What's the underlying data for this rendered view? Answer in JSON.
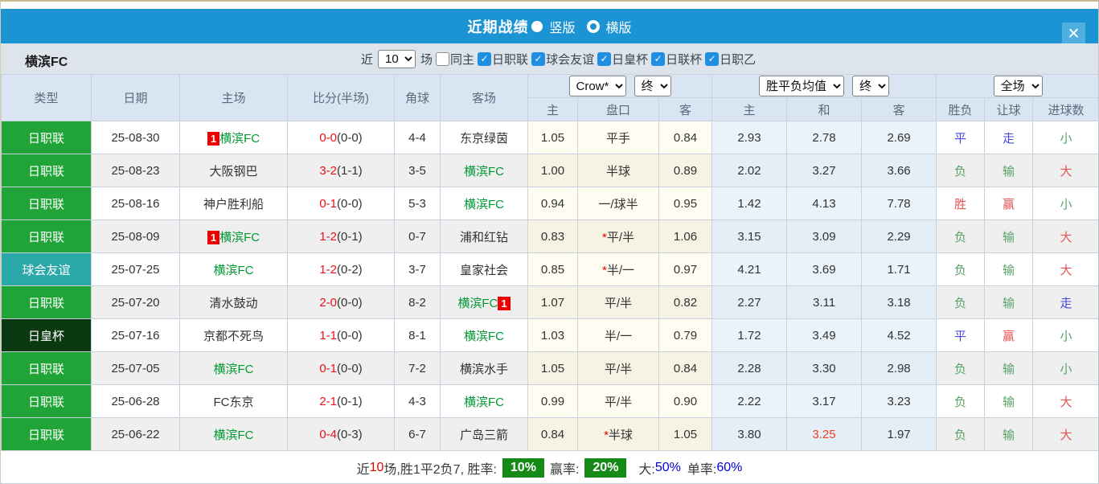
{
  "header": {
    "title": "近期战绩",
    "layout_vertical": "竖版",
    "layout_horizontal": "横版",
    "close_glyph": "✕"
  },
  "filter": {
    "team": "横滨FC",
    "near_label": "近",
    "near_value": "10",
    "games_label": "场",
    "same_home_label": "同主",
    "leagues": [
      "日职联",
      "球会友谊",
      "日皇杯",
      "日联杯",
      "日职乙"
    ],
    "check_glyph": "✓"
  },
  "table": {
    "static_headers": [
      "类型",
      "日期",
      "主场",
      "比分(半场)",
      "角球",
      "客场"
    ],
    "odds_group": {
      "select1": "Crow*",
      "select2": "终",
      "cols": [
        "主",
        "盘口",
        "客"
      ]
    },
    "avg_group": {
      "select1": "胜平负均值",
      "select2": "终",
      "cols": [
        "主",
        "和",
        "客"
      ]
    },
    "result_group": {
      "select": "全场",
      "cols": [
        "胜负",
        "让球",
        "进球数"
      ]
    },
    "rows": [
      {
        "league": "日职联",
        "league_color": "green",
        "date": "25-08-30",
        "home": {
          "name": "横滨FC",
          "green": true,
          "badge": "1",
          "badge_pos": "before"
        },
        "ft": "0-0",
        "ht": "(0-0)",
        "corners": "4-4",
        "away": {
          "name": "东京绿茵"
        },
        "odds_home": "1.05",
        "handicap": {
          "text": "平手"
        },
        "odds_away": "0.84",
        "avg": [
          "2.93",
          "2.78",
          "2.69"
        ],
        "results": [
          {
            "t": "平",
            "c": "blue"
          },
          {
            "t": "走",
            "c": "blue"
          },
          {
            "t": "小",
            "c": "green"
          }
        ]
      },
      {
        "league": "日职联",
        "league_color": "green",
        "date": "25-08-23",
        "home": {
          "name": "大阪钢巴"
        },
        "ft": "3-2",
        "ht": "(1-1)",
        "corners": "3-5",
        "away": {
          "name": "横滨FC",
          "green": true
        },
        "odds_home": "1.00",
        "handicap": {
          "text": "半球"
        },
        "odds_away": "0.89",
        "avg": [
          "2.02",
          "3.27",
          "3.66"
        ],
        "results": [
          {
            "t": "负",
            "c": "green"
          },
          {
            "t": "输",
            "c": "green"
          },
          {
            "t": "大",
            "c": "red"
          }
        ]
      },
      {
        "league": "日职联",
        "league_color": "green",
        "date": "25-08-16",
        "home": {
          "name": "神户胜利船"
        },
        "ft": "0-1",
        "ht": "(0-0)",
        "corners": "5-3",
        "away": {
          "name": "横滨FC",
          "green": true
        },
        "odds_home": "0.94",
        "handicap": {
          "text": "一/球半"
        },
        "odds_away": "0.95",
        "avg": [
          "1.42",
          "4.13",
          "7.78"
        ],
        "results": [
          {
            "t": "胜",
            "c": "red"
          },
          {
            "t": "赢",
            "c": "red"
          },
          {
            "t": "小",
            "c": "green"
          }
        ]
      },
      {
        "league": "日职联",
        "league_color": "green",
        "date": "25-08-09",
        "home": {
          "name": "横滨FC",
          "green": true,
          "badge": "1",
          "badge_pos": "before"
        },
        "ft": "1-2",
        "ht": "(0-1)",
        "corners": "0-7",
        "away": {
          "name": "浦和红钻"
        },
        "odds_home": "0.83",
        "handicap": {
          "star": true,
          "text": "平/半"
        },
        "odds_away": "1.06",
        "avg": [
          "3.15",
          "3.09",
          "2.29"
        ],
        "results": [
          {
            "t": "负",
            "c": "green"
          },
          {
            "t": "输",
            "c": "green"
          },
          {
            "t": "大",
            "c": "red"
          }
        ]
      },
      {
        "league": "球会友谊",
        "league_color": "teal",
        "date": "25-07-25",
        "home": {
          "name": "横滨FC",
          "green": true
        },
        "ft": "1-2",
        "ht": "(0-2)",
        "corners": "3-7",
        "away": {
          "name": "皇家社会"
        },
        "odds_home": "0.85",
        "handicap": {
          "star": true,
          "text": "半/一"
        },
        "odds_away": "0.97",
        "avg": [
          "4.21",
          "3.69",
          "1.71"
        ],
        "results": [
          {
            "t": "负",
            "c": "green"
          },
          {
            "t": "输",
            "c": "green"
          },
          {
            "t": "大",
            "c": "red"
          }
        ]
      },
      {
        "league": "日职联",
        "league_color": "green",
        "date": "25-07-20",
        "home": {
          "name": "清水鼓动"
        },
        "ft": "2-0",
        "ht": "(0-0)",
        "corners": "8-2",
        "away": {
          "name": "横滨FC",
          "green": true,
          "badge": "1",
          "badge_pos": "after"
        },
        "odds_home": "1.07",
        "handicap": {
          "text": "平/半"
        },
        "odds_away": "0.82",
        "avg": [
          "2.27",
          "3.11",
          "3.18"
        ],
        "results": [
          {
            "t": "负",
            "c": "green"
          },
          {
            "t": "输",
            "c": "green"
          },
          {
            "t": "走",
            "c": "blue"
          }
        ]
      },
      {
        "league": "日皇杯",
        "league_color": "dark",
        "date": "25-07-16",
        "home": {
          "name": "京都不死鸟"
        },
        "ft": "1-1",
        "ht": "(0-0)",
        "corners": "8-1",
        "away": {
          "name": "横滨FC",
          "green": true
        },
        "odds_home": "1.03",
        "handicap": {
          "text": "半/一"
        },
        "odds_away": "0.79",
        "avg": [
          "1.72",
          "3.49",
          "4.52"
        ],
        "results": [
          {
            "t": "平",
            "c": "blue"
          },
          {
            "t": "赢",
            "c": "red"
          },
          {
            "t": "小",
            "c": "green"
          }
        ]
      },
      {
        "league": "日职联",
        "league_color": "green",
        "date": "25-07-05",
        "home": {
          "name": "横滨FC",
          "green": true
        },
        "ft": "0-1",
        "ht": "(0-0)",
        "corners": "7-2",
        "away": {
          "name": "横滨水手"
        },
        "odds_home": "1.05",
        "handicap": {
          "text": "平/半"
        },
        "odds_away": "0.84",
        "avg": [
          "2.28",
          "3.30",
          "2.98"
        ],
        "results": [
          {
            "t": "负",
            "c": "green"
          },
          {
            "t": "输",
            "c": "green"
          },
          {
            "t": "小",
            "c": "green"
          }
        ]
      },
      {
        "league": "日职联",
        "league_color": "green",
        "date": "25-06-28",
        "home": {
          "name": "FC东京"
        },
        "ft": "2-1",
        "ht": "(0-1)",
        "corners": "4-3",
        "away": {
          "name": "横滨FC",
          "green": true
        },
        "odds_home": "0.99",
        "handicap": {
          "text": "平/半"
        },
        "odds_away": "0.90",
        "avg": [
          "2.22",
          "3.17",
          "3.23"
        ],
        "results": [
          {
            "t": "负",
            "c": "green"
          },
          {
            "t": "输",
            "c": "green"
          },
          {
            "t": "大",
            "c": "red"
          }
        ]
      },
      {
        "league": "日职联",
        "league_color": "green",
        "date": "25-06-22",
        "home": {
          "name": "横滨FC",
          "green": true
        },
        "ft": "0-4",
        "ht": "(0-3)",
        "corners": "6-7",
        "away": {
          "name": "广岛三箭"
        },
        "odds_home": "0.84",
        "handicap": {
          "star": true,
          "text": "半球"
        },
        "odds_away": "1.05",
        "avg": [
          "3.80",
          "3.25",
          "1.97"
        ],
        "avg_red": 1,
        "results": [
          {
            "t": "负",
            "c": "green"
          },
          {
            "t": "输",
            "c": "green"
          },
          {
            "t": "大",
            "c": "red"
          }
        ]
      }
    ]
  },
  "summary": {
    "near": "近",
    "count": "10",
    "detail": "场,胜1平2负7, 胜率:",
    "win_rate": "10%",
    "profit_label": "赢率:",
    "profit_rate": "20%",
    "big_label": "大:",
    "big_rate": "50%",
    "single_label": "单率:",
    "single_rate": "60%"
  },
  "colors": {
    "header_blue": "#1C93D2",
    "league_green": "#21A437",
    "friendly_teal": "#2BA8A8",
    "emperor_dark_green": "#0B3A12",
    "team_green": "#009933",
    "score_red": "#E8111A",
    "badge_red": "#EE0000",
    "result_red": "#E25454",
    "result_green": "#56A268",
    "result_blue": "#4848DF",
    "rate_badge_green": "#168A16",
    "pct_blue": "#0000E0"
  }
}
